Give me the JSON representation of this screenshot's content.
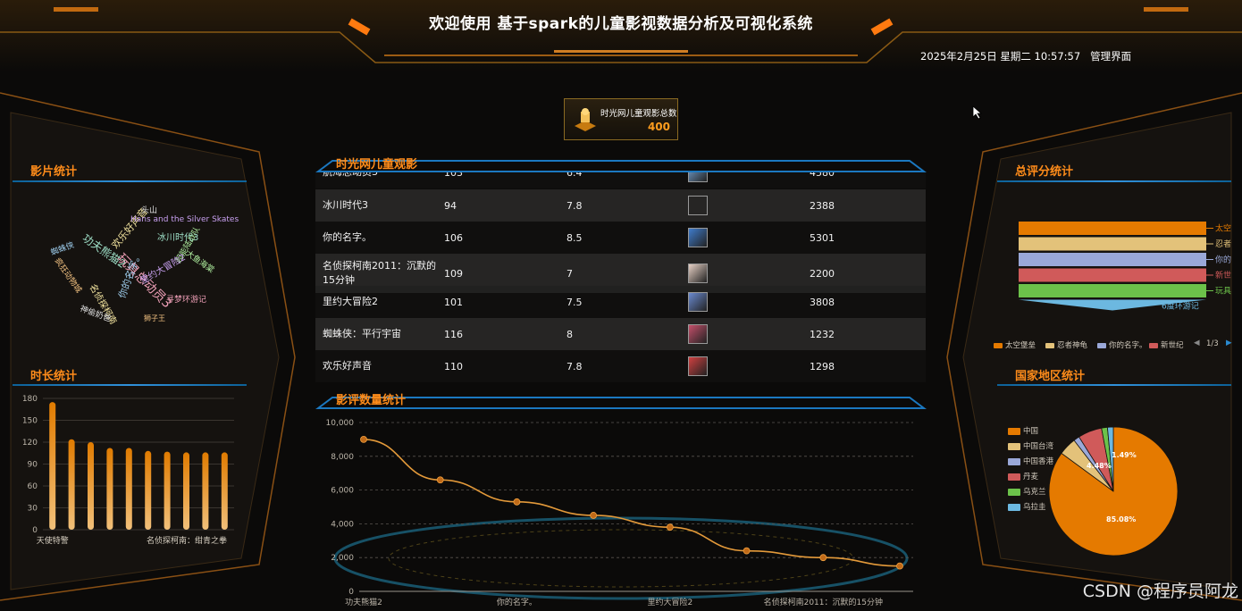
{
  "header": {
    "title": "欢迎使用 基于spark的儿童影视数据分析及可视化系统",
    "datetime": "2025年2月25日 星期二 10:57:57",
    "admin_link": "管理界面"
  },
  "total": {
    "label": "时光网儿童观影总数",
    "value": "400"
  },
  "panels": {
    "film_stats": "影片统计",
    "duration_stats": "时长统计",
    "table_title": "时光网儿童观影",
    "review_stats": "影评数量统计",
    "score_stats": "总评分统计",
    "region_stats": "国家地区统计"
  },
  "table": {
    "rows": [
      {
        "name": "航海总动员3",
        "duration": "103",
        "score": "6.4",
        "count": "4580"
      },
      {
        "name": "冰川时代3",
        "duration": "94",
        "score": "7.8",
        "count": "2388"
      },
      {
        "name": "你的名字。",
        "duration": "106",
        "score": "8.5",
        "count": "5301"
      },
      {
        "name": "名侦探柯南2011：沉默的15分钟",
        "duration": "109",
        "score": "7",
        "count": "2200"
      },
      {
        "name": "里约大冒险2",
        "duration": "101",
        "score": "7.5",
        "count": "3808"
      },
      {
        "name": "蜘蛛侠：平行宇宙",
        "duration": "116",
        "score": "8",
        "count": "1232"
      },
      {
        "name": "欢乐好声音",
        "duration": "110",
        "score": "7.8",
        "count": "1298"
      }
    ]
  },
  "wordcloud": [
    "欢乐好声音",
    "功夫熊猫2",
    "Hans and the Silver Skates",
    "玩具总动员3",
    "你的名字。",
    "头山",
    "疯狂动物城",
    "超能陆战队",
    "名侦探柯南",
    "冰川时代3",
    "里约大冒险2",
    "寻梦环游记",
    "蜘蛛侠",
    "神偷奶爸",
    "狮子王",
    "大鱼海棠"
  ],
  "chart_data": [
    {
      "type": "bar",
      "title": "时长统计",
      "categories": [
        "天使特警",
        "",
        "",
        "",
        "",
        "",
        "",
        "",
        "",
        "名侦探柯南：绀青之拳"
      ],
      "values": [
        175,
        124,
        120,
        112,
        112,
        108,
        107,
        106,
        106,
        106
      ],
      "ylim": [
        0,
        180
      ],
      "yticks": [
        "0",
        "30",
        "60",
        "90",
        "120",
        "150",
        "180"
      ],
      "color_top": "#e07b00",
      "color_bottom": "#f1c07a"
    },
    {
      "type": "line",
      "title": "影评数量统计",
      "x": [
        "功夫熊猫2",
        "",
        "你的名字。",
        "",
        "里约大冒险2",
        "",
        "名侦探柯南2011：沉默的15分钟",
        ""
      ],
      "values": [
        9000,
        6600,
        5300,
        4500,
        3800,
        2400,
        2000,
        1500
      ],
      "ylim": [
        0,
        10000
      ],
      "yticks": [
        "0",
        "2,000",
        "4,000",
        "6,000",
        "8,000",
        "10,000"
      ],
      "xticks": [
        "功夫熊猫2",
        "你的名字。",
        "里约大冒险2",
        "名侦探柯南2011：沉默的15分钟"
      ],
      "color": "#e49a3a"
    },
    {
      "type": "funnel",
      "title": "总评分统计",
      "categories": [
        "太空堡垒",
        "忍者神龟",
        "你的名字。",
        "新世纪",
        "玩具总动员",
        "6度环游记"
      ],
      "labels": [
        "太空",
        "忍者",
        "你的",
        "新世",
        "玩具",
        "6度环游记"
      ],
      "colors": [
        "#e57a00",
        "#e3c27a",
        "#9aa8d8",
        "#d05a5a",
        "#6cc24a",
        "#6cb8e0"
      ],
      "legend": [
        "太空堡垒",
        "忍者神龟",
        "你的名字。",
        "新世纪"
      ],
      "legend_page": "1/3"
    },
    {
      "type": "pie",
      "title": "国家地区统计",
      "categories": [
        "中国",
        "中国台湾",
        "中国香港",
        "丹麦",
        "乌克兰",
        "乌拉圭"
      ],
      "values": [
        85.08,
        4.48,
        1.49,
        6.0,
        1.49,
        1.46
      ],
      "visible_labels": [
        "85.08%",
        "4.48%",
        "1.49%"
      ],
      "colors": [
        "#e57a00",
        "#e3c27a",
        "#9aa8d8",
        "#d05a5a",
        "#6cc24a",
        "#6cb8e0"
      ]
    }
  ],
  "watermark": "CSDN @程序员阿龙"
}
